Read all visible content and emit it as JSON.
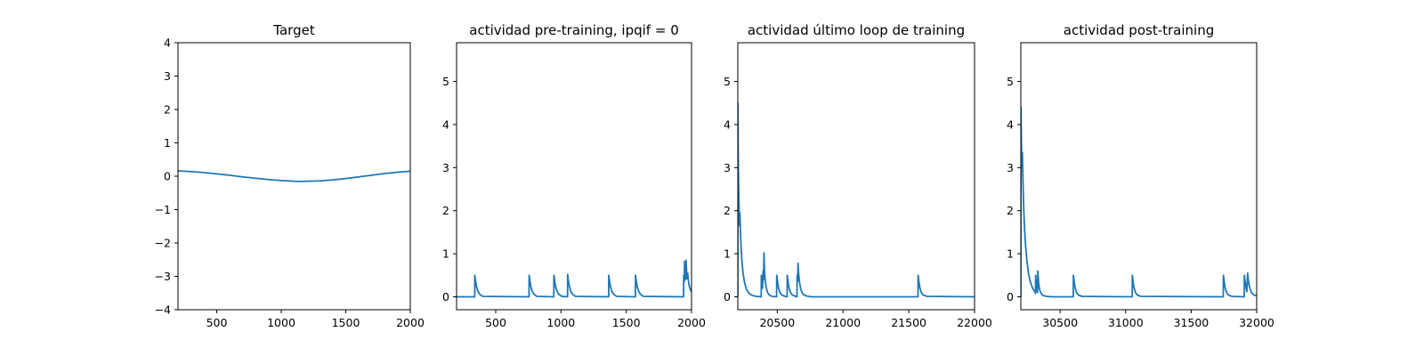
{
  "chart_data": [
    {
      "type": "line",
      "title": "Target",
      "xlabel": "",
      "ylabel": "",
      "xlim": [
        200,
        2000
      ],
      "ylim": [
        -4,
        4
      ],
      "xticks": [
        500,
        1000,
        1500,
        2000
      ],
      "yticks": [
        -4,
        -3,
        -2,
        -1,
        0,
        1,
        2,
        3,
        4
      ],
      "grid": false,
      "legend": "none",
      "series": [
        {
          "color": "#1f77b4",
          "x": [
            200,
            300,
            400,
            500,
            600,
            700,
            800,
            900,
            1000,
            1100,
            1150,
            1200,
            1300,
            1400,
            1500,
            1600,
            1700,
            1800,
            1900,
            2000
          ],
          "y": [
            0.16,
            0.14,
            0.11,
            0.07,
            0.03,
            -0.02,
            -0.06,
            -0.1,
            -0.13,
            -0.15,
            -0.155,
            -0.15,
            -0.14,
            -0.11,
            -0.07,
            -0.02,
            0.03,
            0.08,
            0.12,
            0.15
          ]
        }
      ]
    },
    {
      "type": "line",
      "title": "actividad pre-training, ipqif = 0",
      "xlabel": "",
      "ylabel": "",
      "xlim": [
        200,
        2000
      ],
      "ylim": [
        -0.3,
        5.9
      ],
      "xticks": [
        500,
        1000,
        1500,
        2000
      ],
      "yticks": [
        0,
        1,
        2,
        3,
        4,
        5
      ],
      "grid": false,
      "legend": "none",
      "series": [
        {
          "color": "#1f77b4",
          "x": [
            200,
            339,
            340,
            345,
            352,
            362,
            377,
            400,
            755,
            756,
            761,
            768,
            778,
            793,
            816,
            945,
            946,
            951,
            958,
            968,
            983,
            1006,
            1050,
            1051,
            1056,
            1063,
            1073,
            1088,
            1111,
            1365,
            1366,
            1371,
            1378,
            1388,
            1403,
            1426,
            1570,
            1571,
            1576,
            1583,
            1593,
            1608,
            1631,
            1939,
            1940,
            1944,
            1947,
            1950,
            1955,
            1958,
            1962,
            1966,
            1970,
            1975,
            1980,
            1985,
            1990,
            1995,
            2000
          ],
          "y": [
            0,
            0,
            0.5,
            0.38,
            0.25,
            0.14,
            0.06,
            0.01,
            0,
            0.5,
            0.38,
            0.25,
            0.14,
            0.06,
            0.01,
            0,
            0.5,
            0.38,
            0.25,
            0.14,
            0.06,
            0.01,
            0,
            0.52,
            0.39,
            0.26,
            0.14,
            0.06,
            0.01,
            0,
            0.5,
            0.38,
            0.25,
            0.14,
            0.06,
            0.01,
            0,
            0.5,
            0.38,
            0.25,
            0.14,
            0.06,
            0.01,
            0,
            0.5,
            0.35,
            0.82,
            0.6,
            0.4,
            0.85,
            0.6,
            0.42,
            0.55,
            0.4,
            0.3,
            0.22,
            0.18,
            0.14,
            0.12
          ]
        }
      ]
    },
    {
      "type": "line",
      "title": "actividad último loop de training",
      "xlabel": "",
      "ylabel": "",
      "xlim": [
        20200,
        22000
      ],
      "ylim": [
        -0.3,
        5.9
      ],
      "xticks": [
        20500,
        21000,
        21500,
        22000
      ],
      "yticks": [
        0,
        1,
        2,
        3,
        4,
        5
      ],
      "grid": false,
      "legend": "none",
      "series": [
        {
          "color": "#1f77b4",
          "x": [
            20200,
            20201,
            20203,
            20206,
            20210,
            20213,
            20216,
            20220,
            20225,
            20232,
            20240,
            20250,
            20265,
            20285,
            20310,
            20340,
            20378,
            20379,
            20383,
            20388,
            20393,
            20396,
            20399,
            20402,
            20405,
            20410,
            20418,
            20428,
            20440,
            20460,
            20495,
            20496,
            20502,
            20510,
            20520,
            20535,
            20560,
            20575,
            20576,
            20582,
            20590,
            20600,
            20615,
            20640,
            20650,
            20651,
            20655,
            20658,
            20662,
            20670,
            20680,
            20695,
            20720,
            20760,
            21570,
            21571,
            21577,
            21585,
            21595,
            21610,
            21640,
            22000
          ],
          "y": [
            0,
            4.5,
            3.4,
            2.6,
            2.0,
            1.65,
            1.95,
            1.5,
            1.15,
            0.8,
            0.55,
            0.35,
            0.18,
            0.08,
            0.03,
            0.01,
            0,
            0.5,
            0.35,
            0.2,
            0.6,
            0.4,
            1.02,
            0.7,
            0.5,
            0.32,
            0.18,
            0.09,
            0.04,
            0.01,
            0,
            0.5,
            0.35,
            0.2,
            0.1,
            0.04,
            0.01,
            0,
            0.5,
            0.35,
            0.2,
            0.1,
            0.04,
            0.01,
            0,
            0.5,
            0.35,
            0.78,
            0.55,
            0.32,
            0.16,
            0.06,
            0.02,
            0,
            0,
            0.5,
            0.35,
            0.2,
            0.1,
            0.04,
            0.01,
            0
          ]
        }
      ]
    },
    {
      "type": "line",
      "title": "actividad post-training",
      "xlabel": "",
      "ylabel": "",
      "xlim": [
        30200,
        32000
      ],
      "ylim": [
        -0.3,
        5.9
      ],
      "xticks": [
        30500,
        31000,
        31500,
        32000
      ],
      "yticks": [
        0,
        1,
        2,
        3,
        4,
        5
      ],
      "grid": false,
      "legend": "none",
      "series": [
        {
          "color": "#1f77b4",
          "x": [
            30200,
            30201,
            30204,
            30208,
            30212,
            30215,
            30218,
            30222,
            30228,
            30236,
            30246,
            30258,
            30272,
            30290,
            30310,
            30312,
            30313,
            30317,
            30322,
            30327,
            30330,
            30333,
            30336,
            30340,
            30346,
            30355,
            30365,
            30380,
            30400,
            30430,
            30600,
            30601,
            30607,
            30615,
            30625,
            30640,
            30665,
            31050,
            31051,
            31057,
            31065,
            31075,
            31090,
            31115,
            31745,
            31746,
            31752,
            31760,
            31770,
            31785,
            31810,
            31905,
            31906,
            31912,
            31920,
            31925,
            31931,
            31936,
            31942,
            31950,
            31960,
            31975,
            32000
          ],
          "y": [
            0,
            4.4,
            3.6,
            3.0,
            3.35,
            2.9,
            2.5,
            2.05,
            1.6,
            1.2,
            0.85,
            0.55,
            0.35,
            0.2,
            0.1,
            0.08,
            0.5,
            0.35,
            0.2,
            0.1,
            0.6,
            0.45,
            0.32,
            0.22,
            0.14,
            0.08,
            0.04,
            0.02,
            0.01,
            0,
            0,
            0.5,
            0.35,
            0.2,
            0.1,
            0.04,
            0.01,
            0,
            0.5,
            0.35,
            0.2,
            0.1,
            0.04,
            0.01,
            0,
            0.5,
            0.35,
            0.2,
            0.1,
            0.04,
            0.01,
            0,
            0.5,
            0.35,
            0.2,
            0.12,
            0.55,
            0.4,
            0.28,
            0.18,
            0.1,
            0.05,
            0.02
          ]
        }
      ]
    }
  ]
}
